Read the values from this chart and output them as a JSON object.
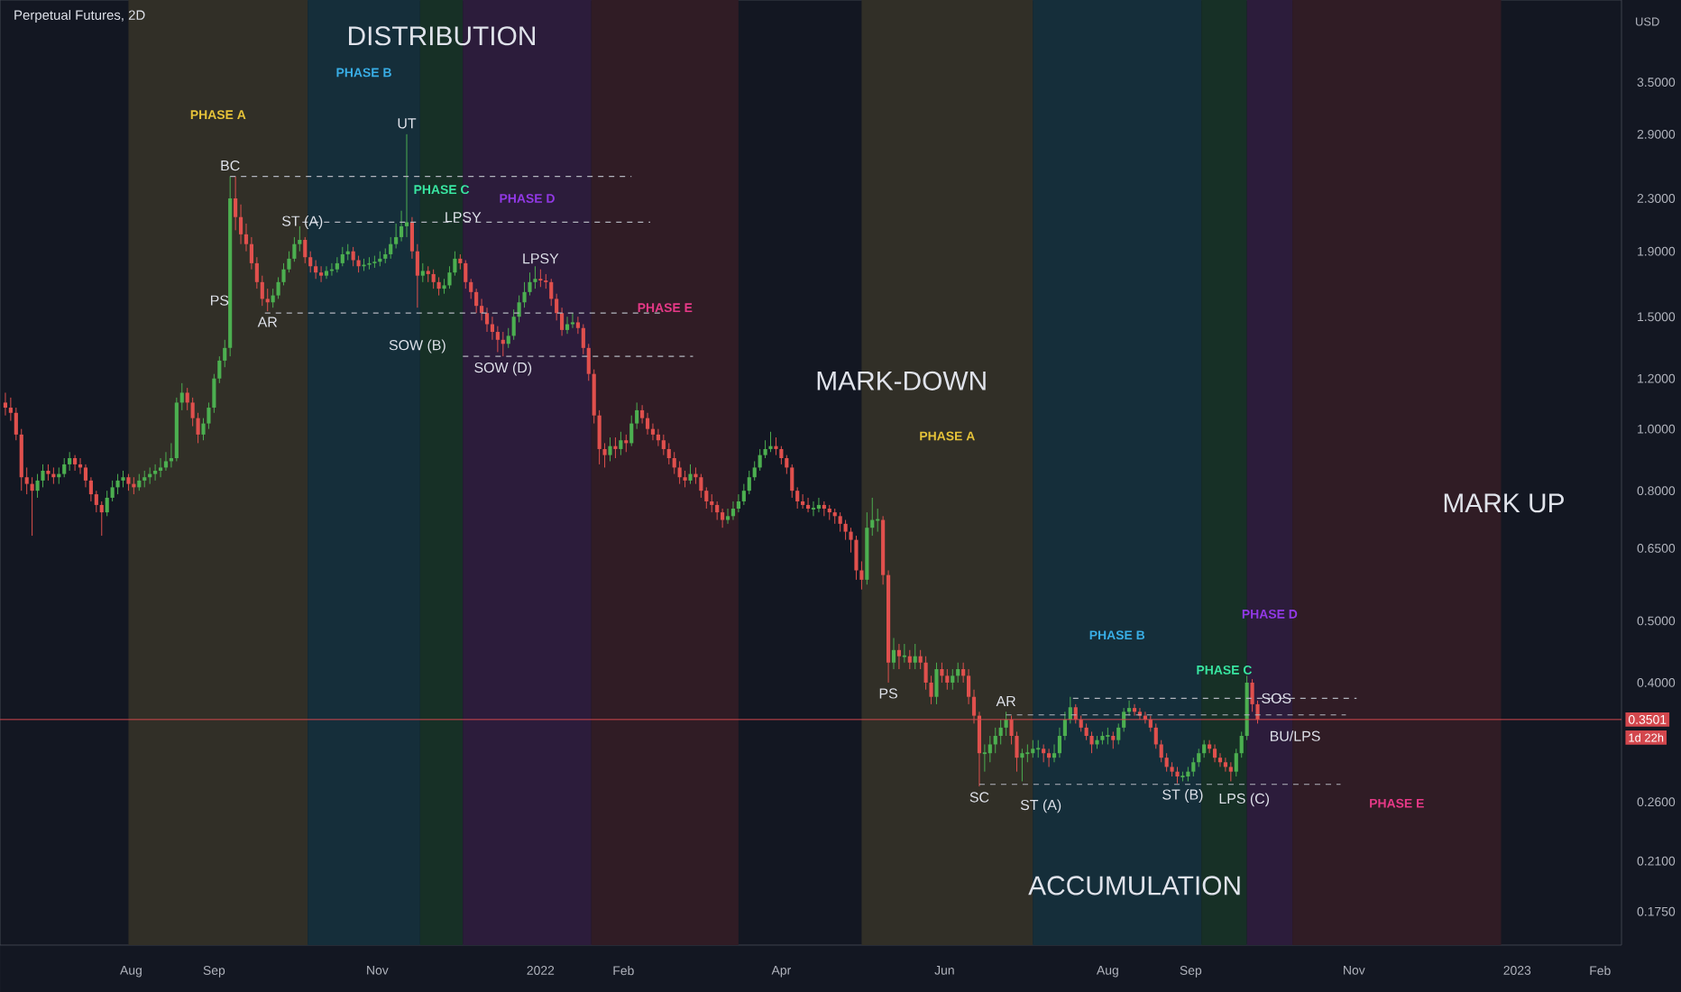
{
  "chart_data": {
    "type": "candlestick",
    "title": "Perpetual Futures, 2D",
    "x": [
      "2021-06-15",
      "2021-06-17",
      "2021-06-19",
      "2021-06-21",
      "2021-06-23",
      "2021-06-25",
      "2021-06-27",
      "2021-06-29",
      "2021-07-01",
      "2021-07-03",
      "2021-07-05",
      "2021-07-07",
      "2021-07-09",
      "2021-07-11",
      "2021-07-13",
      "2021-07-15",
      "2021-07-17",
      "2021-07-19",
      "2021-07-21",
      "2021-07-23",
      "2021-07-25",
      "2021-07-27",
      "2021-07-29",
      "2021-07-31",
      "2021-08-02",
      "2021-08-04",
      "2021-08-06",
      "2021-08-08",
      "2021-08-10",
      "2021-08-12",
      "2021-08-14",
      "2021-08-16",
      "2021-08-18",
      "2021-08-20",
      "2021-08-22",
      "2021-08-24",
      "2021-08-26",
      "2021-08-28",
      "2021-08-30",
      "2021-09-01",
      "2021-09-03",
      "2021-09-05",
      "2021-09-07",
      "2021-09-09",
      "2021-09-11",
      "2021-09-13",
      "2021-09-15",
      "2021-09-17",
      "2021-09-19",
      "2021-09-21",
      "2021-09-23",
      "2021-09-25",
      "2021-09-27",
      "2021-09-29",
      "2021-10-01",
      "2021-10-03",
      "2021-10-05",
      "2021-10-07",
      "2021-10-09",
      "2021-10-11",
      "2021-10-13",
      "2021-10-15",
      "2021-10-17",
      "2021-10-19",
      "2021-10-21",
      "2021-10-23",
      "2021-10-25",
      "2021-10-27",
      "2021-10-29",
      "2021-10-31",
      "2021-11-02",
      "2021-11-04",
      "2021-11-06",
      "2021-11-08",
      "2021-11-10",
      "2021-11-12",
      "2021-11-14",
      "2021-11-16",
      "2021-11-18",
      "2021-11-20",
      "2021-11-22",
      "2021-11-24",
      "2021-11-26",
      "2021-11-28",
      "2021-11-30",
      "2021-12-02",
      "2021-12-04",
      "2021-12-06",
      "2021-12-08",
      "2021-12-10",
      "2021-12-12",
      "2021-12-14",
      "2021-12-16",
      "2021-12-18",
      "2021-12-20",
      "2021-12-22",
      "2021-12-24",
      "2021-12-26",
      "2021-12-28",
      "2021-12-30",
      "2022-01-01",
      "2022-01-03",
      "2022-01-05",
      "2022-01-07",
      "2022-01-09",
      "2022-01-11",
      "2022-01-13",
      "2022-01-15",
      "2022-01-17",
      "2022-01-19",
      "2022-01-21",
      "2022-01-23",
      "2022-01-25",
      "2022-01-27",
      "2022-01-29",
      "2022-01-31",
      "2022-02-02",
      "2022-02-04",
      "2022-02-06",
      "2022-02-08",
      "2022-02-10",
      "2022-02-12",
      "2022-02-14",
      "2022-02-16",
      "2022-02-18",
      "2022-02-20",
      "2022-02-22",
      "2022-02-24",
      "2022-02-26",
      "2022-02-28",
      "2022-03-02",
      "2022-03-04",
      "2022-03-06",
      "2022-03-08",
      "2022-03-10",
      "2022-03-12",
      "2022-03-14",
      "2022-03-16",
      "2022-03-18",
      "2022-03-20",
      "2022-03-22",
      "2022-03-24",
      "2022-03-26",
      "2022-03-28",
      "2022-03-30",
      "2022-04-01",
      "2022-04-03",
      "2022-04-05",
      "2022-04-07",
      "2022-04-09",
      "2022-04-11",
      "2022-04-13",
      "2022-04-15",
      "2022-04-17",
      "2022-04-19",
      "2022-04-21",
      "2022-04-23",
      "2022-04-25",
      "2022-04-27",
      "2022-04-29",
      "2022-05-01",
      "2022-05-03",
      "2022-05-05",
      "2022-05-07",
      "2022-05-09",
      "2022-05-11",
      "2022-05-13",
      "2022-05-15",
      "2022-05-17",
      "2022-05-19",
      "2022-05-21",
      "2022-05-23",
      "2022-05-25",
      "2022-05-27",
      "2022-05-29",
      "2022-05-31",
      "2022-06-02",
      "2022-06-04",
      "2022-06-06",
      "2022-06-08",
      "2022-06-10",
      "2022-06-12",
      "2022-06-14",
      "2022-06-16",
      "2022-06-18",
      "2022-06-20",
      "2022-06-22",
      "2022-06-24",
      "2022-06-26",
      "2022-06-28",
      "2022-06-30",
      "2022-07-02",
      "2022-07-04",
      "2022-07-06",
      "2022-07-08",
      "2022-07-10",
      "2022-07-12",
      "2022-07-14",
      "2022-07-16",
      "2022-07-18",
      "2022-07-20",
      "2022-07-22",
      "2022-07-24",
      "2022-07-26",
      "2022-07-28",
      "2022-07-30",
      "2022-08-01",
      "2022-08-03",
      "2022-08-05",
      "2022-08-07",
      "2022-08-09",
      "2022-08-11",
      "2022-08-13",
      "2022-08-15",
      "2022-08-17",
      "2022-08-19",
      "2022-08-21",
      "2022-08-23",
      "2022-08-25",
      "2022-08-27",
      "2022-08-29",
      "2022-08-31",
      "2022-09-02",
      "2022-09-04",
      "2022-09-06",
      "2022-09-08",
      "2022-09-10",
      "2022-09-12",
      "2022-09-14",
      "2022-09-16",
      "2022-09-18",
      "2022-09-20",
      "2022-09-22",
      "2022-09-24",
      "2022-09-26"
    ],
    "ohlc": [
      [
        1.1,
        1.14,
        1.05,
        1.08
      ],
      [
        1.08,
        1.12,
        1.03,
        1.06
      ],
      [
        1.06,
        1.08,
        0.96,
        0.98
      ],
      [
        0.98,
        1.0,
        0.8,
        0.84
      ],
      [
        0.84,
        0.87,
        0.79,
        0.82
      ],
      [
        0.82,
        0.84,
        0.68,
        0.8
      ],
      [
        0.8,
        0.85,
        0.78,
        0.83
      ],
      [
        0.83,
        0.88,
        0.81,
        0.86
      ],
      [
        0.86,
        0.88,
        0.83,
        0.85
      ],
      [
        0.85,
        0.87,
        0.82,
        0.84
      ],
      [
        0.84,
        0.87,
        0.82,
        0.85
      ],
      [
        0.85,
        0.9,
        0.84,
        0.88
      ],
      [
        0.88,
        0.92,
        0.86,
        0.9
      ],
      [
        0.9,
        0.91,
        0.86,
        0.88
      ],
      [
        0.88,
        0.9,
        0.85,
        0.87
      ],
      [
        0.87,
        0.88,
        0.81,
        0.83
      ],
      [
        0.83,
        0.84,
        0.77,
        0.79
      ],
      [
        0.79,
        0.8,
        0.74,
        0.76
      ],
      [
        0.76,
        0.77,
        0.68,
        0.74
      ],
      [
        0.74,
        0.8,
        0.73,
        0.78
      ],
      [
        0.78,
        0.83,
        0.77,
        0.81
      ],
      [
        0.81,
        0.85,
        0.79,
        0.83
      ],
      [
        0.83,
        0.86,
        0.81,
        0.84
      ],
      [
        0.84,
        0.85,
        0.8,
        0.82
      ],
      [
        0.82,
        0.84,
        0.79,
        0.81
      ],
      [
        0.81,
        0.85,
        0.8,
        0.83
      ],
      [
        0.83,
        0.86,
        0.81,
        0.84
      ],
      [
        0.84,
        0.87,
        0.82,
        0.85
      ],
      [
        0.85,
        0.88,
        0.83,
        0.86
      ],
      [
        0.86,
        0.9,
        0.84,
        0.87
      ],
      [
        0.87,
        0.92,
        0.86,
        0.89
      ],
      [
        0.89,
        0.95,
        0.87,
        0.9
      ],
      [
        0.9,
        1.12,
        0.89,
        1.1
      ],
      [
        1.1,
        1.18,
        1.07,
        1.14
      ],
      [
        1.14,
        1.16,
        1.07,
        1.1
      ],
      [
        1.1,
        1.12,
        1.01,
        1.04
      ],
      [
        1.04,
        1.06,
        0.95,
        0.98
      ],
      [
        0.98,
        1.04,
        0.96,
        1.02
      ],
      [
        1.02,
        1.1,
        1.0,
        1.08
      ],
      [
        1.08,
        1.22,
        1.06,
        1.2
      ],
      [
        1.2,
        1.3,
        1.18,
        1.28
      ],
      [
        1.28,
        1.38,
        1.25,
        1.34
      ],
      [
        1.34,
        2.49,
        1.3,
        2.3
      ],
      [
        2.3,
        2.49,
        2.05,
        2.15
      ],
      [
        2.15,
        2.25,
        1.95,
        2.02
      ],
      [
        2.02,
        2.1,
        1.9,
        1.95
      ],
      [
        1.95,
        2.0,
        1.78,
        1.82
      ],
      [
        1.82,
        1.86,
        1.66,
        1.7
      ],
      [
        1.7,
        1.74,
        1.56,
        1.6
      ],
      [
        1.6,
        1.66,
        1.53,
        1.58
      ],
      [
        1.58,
        1.66,
        1.55,
        1.62
      ],
      [
        1.62,
        1.73,
        1.6,
        1.7
      ],
      [
        1.7,
        1.82,
        1.68,
        1.78
      ],
      [
        1.78,
        1.9,
        1.76,
        1.85
      ],
      [
        1.85,
        2.0,
        1.83,
        1.95
      ],
      [
        1.95,
        2.08,
        1.9,
        1.98
      ],
      [
        1.98,
        2.0,
        1.82,
        1.86
      ],
      [
        1.86,
        1.9,
        1.76,
        1.8
      ],
      [
        1.8,
        1.84,
        1.72,
        1.76
      ],
      [
        1.76,
        1.8,
        1.7,
        1.74
      ],
      [
        1.74,
        1.8,
        1.72,
        1.77
      ],
      [
        1.77,
        1.82,
        1.74,
        1.78
      ],
      [
        1.78,
        1.86,
        1.76,
        1.82
      ],
      [
        1.82,
        1.93,
        1.8,
        1.88
      ],
      [
        1.88,
        1.95,
        1.84,
        1.9
      ],
      [
        1.9,
        1.93,
        1.8,
        1.84
      ],
      [
        1.84,
        1.87,
        1.76,
        1.8
      ],
      [
        1.8,
        1.85,
        1.77,
        1.81
      ],
      [
        1.81,
        1.86,
        1.78,
        1.82
      ],
      [
        1.82,
        1.87,
        1.79,
        1.83
      ],
      [
        1.83,
        1.9,
        1.8,
        1.85
      ],
      [
        1.85,
        1.92,
        1.82,
        1.88
      ],
      [
        1.88,
        2.0,
        1.85,
        1.95
      ],
      [
        1.95,
        2.1,
        1.92,
        2.0
      ],
      [
        2.0,
        2.2,
        1.97,
        2.08
      ],
      [
        2.08,
        2.9,
        2.0,
        2.11
      ],
      [
        2.11,
        2.15,
        1.85,
        1.9
      ],
      [
        1.9,
        1.95,
        1.55,
        1.74
      ],
      [
        1.74,
        1.82,
        1.7,
        1.77
      ],
      [
        1.77,
        1.8,
        1.7,
        1.75
      ],
      [
        1.75,
        1.78,
        1.66,
        1.7
      ],
      [
        1.7,
        1.73,
        1.62,
        1.66
      ],
      [
        1.66,
        1.72,
        1.63,
        1.68
      ],
      [
        1.68,
        1.8,
        1.66,
        1.76
      ],
      [
        1.76,
        1.9,
        1.74,
        1.85
      ],
      [
        1.85,
        1.88,
        1.78,
        1.82
      ],
      [
        1.82,
        1.84,
        1.66,
        1.7
      ],
      [
        1.7,
        1.72,
        1.6,
        1.64
      ],
      [
        1.64,
        1.66,
        1.52,
        1.56
      ],
      [
        1.56,
        1.6,
        1.48,
        1.52
      ],
      [
        1.52,
        1.55,
        1.42,
        1.46
      ],
      [
        1.46,
        1.5,
        1.38,
        1.42
      ],
      [
        1.42,
        1.45,
        1.32,
        1.38
      ],
      [
        1.38,
        1.42,
        1.3,
        1.36
      ],
      [
        1.36,
        1.44,
        1.34,
        1.4
      ],
      [
        1.4,
        1.54,
        1.38,
        1.5
      ],
      [
        1.5,
        1.62,
        1.47,
        1.58
      ],
      [
        1.58,
        1.7,
        1.55,
        1.64
      ],
      [
        1.64,
        1.76,
        1.62,
        1.7
      ],
      [
        1.7,
        1.8,
        1.66,
        1.72
      ],
      [
        1.72,
        1.78,
        1.67,
        1.71
      ],
      [
        1.71,
        1.75,
        1.66,
        1.7
      ],
      [
        1.7,
        1.72,
        1.56,
        1.6
      ],
      [
        1.6,
        1.63,
        1.48,
        1.52
      ],
      [
        1.52,
        1.55,
        1.4,
        1.43
      ],
      [
        1.43,
        1.5,
        1.41,
        1.46
      ],
      [
        1.46,
        1.52,
        1.44,
        1.47
      ],
      [
        1.47,
        1.5,
        1.41,
        1.44
      ],
      [
        1.44,
        1.46,
        1.31,
        1.34
      ],
      [
        1.34,
        1.36,
        1.19,
        1.22
      ],
      [
        1.22,
        1.24,
        1.02,
        1.05
      ],
      [
        1.05,
        1.07,
        0.88,
        0.93
      ],
      [
        0.93,
        0.95,
        0.87,
        0.91
      ],
      [
        0.91,
        0.97,
        0.89,
        0.94
      ],
      [
        0.94,
        0.97,
        0.9,
        0.93
      ],
      [
        0.93,
        0.99,
        0.91,
        0.96
      ],
      [
        0.96,
        0.98,
        0.92,
        0.95
      ],
      [
        0.95,
        1.05,
        0.94,
        1.02
      ],
      [
        1.02,
        1.1,
        1.0,
        1.07
      ],
      [
        1.07,
        1.09,
        1.02,
        1.04
      ],
      [
        1.04,
        1.06,
        0.98,
        1.0
      ],
      [
        1.0,
        1.02,
        0.96,
        0.98
      ],
      [
        0.98,
        1.0,
        0.94,
        0.96
      ],
      [
        0.96,
        0.98,
        0.91,
        0.93
      ],
      [
        0.93,
        0.95,
        0.88,
        0.9
      ],
      [
        0.9,
        0.92,
        0.85,
        0.87
      ],
      [
        0.87,
        0.89,
        0.82,
        0.84
      ],
      [
        0.84,
        0.86,
        0.81,
        0.83
      ],
      [
        0.83,
        0.88,
        0.82,
        0.85
      ],
      [
        0.85,
        0.87,
        0.82,
        0.84
      ],
      [
        0.84,
        0.85,
        0.78,
        0.8
      ],
      [
        0.8,
        0.81,
        0.75,
        0.77
      ],
      [
        0.77,
        0.79,
        0.74,
        0.76
      ],
      [
        0.76,
        0.77,
        0.72,
        0.74
      ],
      [
        0.74,
        0.75,
        0.7,
        0.72
      ],
      [
        0.72,
        0.75,
        0.71,
        0.73
      ],
      [
        0.73,
        0.77,
        0.72,
        0.75
      ],
      [
        0.75,
        0.79,
        0.74,
        0.77
      ],
      [
        0.77,
        0.82,
        0.76,
        0.8
      ],
      [
        0.8,
        0.86,
        0.79,
        0.84
      ],
      [
        0.84,
        0.89,
        0.83,
        0.87
      ],
      [
        0.87,
        0.93,
        0.86,
        0.91
      ],
      [
        0.91,
        0.96,
        0.9,
        0.93
      ],
      [
        0.93,
        0.99,
        0.92,
        0.94
      ],
      [
        0.94,
        0.97,
        0.91,
        0.93
      ],
      [
        0.93,
        0.94,
        0.88,
        0.9
      ],
      [
        0.9,
        0.91,
        0.85,
        0.87
      ],
      [
        0.87,
        0.88,
        0.78,
        0.8
      ],
      [
        0.8,
        0.81,
        0.75,
        0.77
      ],
      [
        0.77,
        0.79,
        0.75,
        0.76
      ],
      [
        0.76,
        0.78,
        0.74,
        0.75
      ],
      [
        0.75,
        0.77,
        0.73,
        0.75
      ],
      [
        0.75,
        0.78,
        0.74,
        0.76
      ],
      [
        0.76,
        0.77,
        0.73,
        0.75
      ],
      [
        0.75,
        0.76,
        0.72,
        0.74
      ],
      [
        0.74,
        0.75,
        0.71,
        0.73
      ],
      [
        0.73,
        0.74,
        0.69,
        0.71
      ],
      [
        0.71,
        0.72,
        0.67,
        0.69
      ],
      [
        0.69,
        0.7,
        0.64,
        0.67
      ],
      [
        0.67,
        0.68,
        0.58,
        0.6
      ],
      [
        0.6,
        0.62,
        0.56,
        0.58
      ],
      [
        0.58,
        0.74,
        0.57,
        0.7
      ],
      [
        0.7,
        0.78,
        0.68,
        0.72
      ],
      [
        0.72,
        0.75,
        0.69,
        0.72
      ],
      [
        0.72,
        0.73,
        0.57,
        0.59
      ],
      [
        0.59,
        0.6,
        0.4,
        0.43
      ],
      [
        0.43,
        0.47,
        0.42,
        0.45
      ],
      [
        0.45,
        0.46,
        0.42,
        0.44
      ],
      [
        0.44,
        0.46,
        0.43,
        0.44
      ],
      [
        0.44,
        0.45,
        0.42,
        0.43
      ],
      [
        0.43,
        0.46,
        0.42,
        0.44
      ],
      [
        0.44,
        0.45,
        0.42,
        0.43
      ],
      [
        0.43,
        0.44,
        0.39,
        0.4
      ],
      [
        0.4,
        0.41,
        0.37,
        0.38
      ],
      [
        0.38,
        0.43,
        0.37,
        0.42
      ],
      [
        0.42,
        0.43,
        0.4,
        0.41
      ],
      [
        0.41,
        0.42,
        0.39,
        0.4
      ],
      [
        0.4,
        0.42,
        0.39,
        0.41
      ],
      [
        0.41,
        0.43,
        0.4,
        0.42
      ],
      [
        0.42,
        0.43,
        0.4,
        0.41
      ],
      [
        0.41,
        0.42,
        0.37,
        0.38
      ],
      [
        0.38,
        0.39,
        0.345,
        0.355
      ],
      [
        0.355,
        0.36,
        0.275,
        0.31
      ],
      [
        0.31,
        0.32,
        0.29,
        0.31
      ],
      [
        0.31,
        0.33,
        0.3,
        0.32
      ],
      [
        0.32,
        0.34,
        0.31,
        0.33
      ],
      [
        0.33,
        0.35,
        0.32,
        0.34
      ],
      [
        0.34,
        0.36,
        0.33,
        0.35
      ],
      [
        0.35,
        0.355,
        0.32,
        0.33
      ],
      [
        0.33,
        0.335,
        0.29,
        0.305
      ],
      [
        0.305,
        0.315,
        0.28,
        0.31
      ],
      [
        0.31,
        0.32,
        0.3,
        0.31
      ],
      [
        0.31,
        0.325,
        0.305,
        0.315
      ],
      [
        0.315,
        0.325,
        0.305,
        0.315
      ],
      [
        0.315,
        0.32,
        0.3,
        0.31
      ],
      [
        0.31,
        0.315,
        0.295,
        0.305
      ],
      [
        0.305,
        0.32,
        0.3,
        0.31
      ],
      [
        0.31,
        0.34,
        0.305,
        0.33
      ],
      [
        0.33,
        0.36,
        0.325,
        0.35
      ],
      [
        0.35,
        0.38,
        0.345,
        0.366
      ],
      [
        0.366,
        0.37,
        0.345,
        0.35
      ],
      [
        0.35,
        0.355,
        0.335,
        0.34
      ],
      [
        0.34,
        0.345,
        0.325,
        0.33
      ],
      [
        0.33,
        0.335,
        0.31,
        0.32
      ],
      [
        0.32,
        0.33,
        0.315,
        0.325
      ],
      [
        0.325,
        0.335,
        0.32,
        0.33
      ],
      [
        0.33,
        0.34,
        0.32,
        0.33
      ],
      [
        0.33,
        0.335,
        0.315,
        0.325
      ],
      [
        0.325,
        0.345,
        0.32,
        0.34
      ],
      [
        0.34,
        0.365,
        0.335,
        0.36
      ],
      [
        0.36,
        0.375,
        0.355,
        0.365
      ],
      [
        0.365,
        0.37,
        0.355,
        0.36
      ],
      [
        0.36,
        0.365,
        0.35,
        0.355
      ],
      [
        0.355,
        0.36,
        0.345,
        0.35
      ],
      [
        0.35,
        0.355,
        0.335,
        0.34
      ],
      [
        0.34,
        0.345,
        0.315,
        0.32
      ],
      [
        0.32,
        0.325,
        0.3,
        0.305
      ],
      [
        0.305,
        0.31,
        0.29,
        0.295
      ],
      [
        0.295,
        0.3,
        0.285,
        0.29
      ],
      [
        0.29,
        0.295,
        0.278,
        0.285
      ],
      [
        0.285,
        0.29,
        0.28,
        0.285
      ],
      [
        0.285,
        0.295,
        0.28,
        0.29
      ],
      [
        0.29,
        0.305,
        0.285,
        0.3
      ],
      [
        0.3,
        0.315,
        0.295,
        0.31
      ],
      [
        0.31,
        0.325,
        0.305,
        0.32
      ],
      [
        0.32,
        0.325,
        0.31,
        0.315
      ],
      [
        0.315,
        0.32,
        0.3,
        0.305
      ],
      [
        0.305,
        0.31,
        0.295,
        0.3
      ],
      [
        0.3,
        0.305,
        0.29,
        0.295
      ],
      [
        0.295,
        0.3,
        0.28,
        0.29
      ],
      [
        0.29,
        0.315,
        0.285,
        0.31
      ],
      [
        0.31,
        0.335,
        0.305,
        0.33
      ],
      [
        0.33,
        0.41,
        0.325,
        0.4
      ],
      [
        0.4,
        0.405,
        0.36,
        0.37
      ],
      [
        0.37,
        0.375,
        0.345,
        0.3501
      ]
    ],
    "series": [
      {
        "type": "line",
        "color": "#b2b5be",
        "line_style": "dashed",
        "x": [
          "2021-09-07",
          "2022-02-04"
        ],
        "values": [
          2.49,
          2.49
        ]
      },
      {
        "type": "line",
        "color": "#b2b5be",
        "line_style": "dashed",
        "x": [
          "2021-10-04",
          "2022-02-11"
        ],
        "values": [
          2.11,
          2.11
        ]
      },
      {
        "type": "line",
        "color": "#b2b5be",
        "line_style": "dashed",
        "x": [
          "2021-09-20",
          "2022-02-15"
        ],
        "values": [
          1.52,
          1.52
        ]
      },
      {
        "type": "line",
        "color": "#b2b5be",
        "line_style": "dashed",
        "x": [
          "2021-12-03",
          "2022-02-27"
        ],
        "values": [
          1.3,
          1.3
        ]
      },
      {
        "type": "line",
        "color": "#b2b5be",
        "line_style": "dashed",
        "x": [
          "2022-07-19",
          "2022-11-02"
        ],
        "values": [
          0.378,
          0.378
        ]
      },
      {
        "type": "line",
        "color": "#b2b5be",
        "line_style": "dashed",
        "x": [
          "2022-06-24",
          "2022-10-29"
        ],
        "values": [
          0.356,
          0.356
        ]
      },
      {
        "type": "line",
        "color": "#b2b5be",
        "line_style": "dashed",
        "x": [
          "2022-06-14",
          "2022-10-27"
        ],
        "values": [
          0.277,
          0.277
        ]
      }
    ],
    "bands": [
      {
        "axis": "x",
        "from": "2021-07-31",
        "to": "2021-10-06",
        "label": "PHASE A",
        "color": "#312f27"
      },
      {
        "axis": "x",
        "from": "2021-10-06",
        "to": "2021-11-17",
        "label": "PHASE B",
        "color": "#152e3a"
      },
      {
        "axis": "x",
        "from": "2021-11-17",
        "to": "2021-12-03",
        "label": "PHASE C",
        "color": "#173026"
      },
      {
        "axis": "x",
        "from": "2021-12-03",
        "to": "2022-01-20",
        "label": "PHASE D",
        "color": "#2c1c3b"
      },
      {
        "axis": "x",
        "from": "2022-01-20",
        "to": "2022-03-16",
        "label": "PHASE E",
        "color": "#301c25"
      },
      {
        "axis": "x",
        "from": "2022-05-01",
        "to": "2022-07-04",
        "label": "PHASE A",
        "color": "#312f27"
      },
      {
        "axis": "x",
        "from": "2022-07-04",
        "to": "2022-09-05",
        "label": "PHASE B",
        "color": "#152e3a"
      },
      {
        "axis": "x",
        "from": "2022-09-05",
        "to": "2022-09-22",
        "label": "PHASE C",
        "color": "#173026"
      },
      {
        "axis": "x",
        "from": "2022-09-22",
        "to": "2022-10-09",
        "label": "PHASE D",
        "color": "#2c1c3b"
      },
      {
        "axis": "x",
        "from": "2022-10-09",
        "to": "2022-12-26",
        "label": "PHASE E",
        "color": "#301c25"
      }
    ],
    "ref_lines": [
      {
        "axis": "y",
        "value": 0.3501,
        "label": "0.3501",
        "color": "#d3474d"
      }
    ],
    "annotations": [
      "DISTRIBUTION",
      "MARK-DOWN",
      "ACCUMULATION",
      {
        "text": "MARK UP",
        "x": "2022-12-27",
        "y": 0.765
      },
      {
        "text": "PS",
        "x": "2021-09-03",
        "y": 1.53
      },
      {
        "text": "BC",
        "x": "2021-09-07",
        "y": 2.49
      },
      {
        "text": "AR",
        "x": "2021-09-21",
        "y": 1.53
      },
      {
        "text": "ST (A)",
        "x": "2021-10-04",
        "y": 2.11
      },
      {
        "text": "UT",
        "x": "2021-11-12",
        "y": 2.9
      },
      {
        "text": "SOW (B)",
        "x": "2021-11-16",
        "y": 1.41
      },
      {
        "text": "LPSY",
        "x": "2021-12-03",
        "y": 2.15
      },
      {
        "text": "LPSY",
        "x": "2022-01-01",
        "y": 1.78
      },
      {
        "text": "SOW (D)",
        "x": "2021-12-18",
        "y": 1.3
      },
      {
        "text": "PS",
        "x": "2022-05-11",
        "y": 0.4
      },
      {
        "text": "SC",
        "x": "2022-06-14",
        "y": 0.275
      },
      {
        "text": "ST (A)",
        "x": "2022-07-07",
        "y": 0.256
      },
      {
        "text": "AR",
        "x": "2022-06-24",
        "y": 0.36
      },
      {
        "text": "ST (B)",
        "x": "2022-08-29",
        "y": 0.278
      },
      {
        "text": "LPS (C)",
        "x": "2022-09-21",
        "y": 0.262
      },
      {
        "text": "SOS",
        "x": "2022-10-03",
        "y": 0.378
      },
      {
        "text": "BU/LPS",
        "x": "2022-10-10",
        "y": 0.33
      },
      "USD",
      "1d 22h"
    ],
    "log": true,
    "xlim": [
      "2021-06-13",
      "2023-02-09"
    ],
    "xticks": [
      {
        "value": "2021-08-01",
        "label": "Aug"
      },
      {
        "value": "2021-09-01",
        "label": "Sep"
      },
      {
        "value": "2021-11-01",
        "label": "Nov"
      },
      {
        "value": "2022-01-01",
        "label": "2022"
      },
      {
        "value": "2022-02-01",
        "label": "Feb"
      },
      {
        "value": "2022-04-01",
        "label": "Apr"
      },
      {
        "value": "2022-06-01",
        "label": "Jun"
      },
      {
        "value": "2022-08-01",
        "label": "Aug"
      },
      {
        "value": "2022-09-01",
        "label": "Sep"
      },
      {
        "value": "2022-11-01",
        "label": "Nov"
      },
      {
        "value": "2023-01-01",
        "label": "2023"
      },
      {
        "value": "2023-02-01",
        "label": "Feb"
      }
    ],
    "ylim": [
      0.155,
      4.71
    ],
    "yticks": [
      {
        "value": 3.5,
        "label": "3.5000"
      },
      {
        "value": 2.9,
        "label": "2.9000"
      },
      {
        "value": 2.3,
        "label": "2.3000"
      },
      {
        "value": 1.9,
        "label": "1.9000"
      },
      {
        "value": 1.5,
        "label": "1.5000"
      },
      {
        "value": 1.2,
        "label": "1.2000"
      },
      {
        "value": 1.0,
        "label": "1.0000"
      },
      {
        "value": 0.8,
        "label": "0.8000"
      },
      {
        "value": 0.65,
        "label": "0.6500"
      },
      {
        "value": 0.5,
        "label": "0.5000"
      },
      {
        "value": 0.4,
        "label": "0.4000"
      },
      {
        "value": 0.26,
        "label": "0.2600"
      },
      {
        "value": 0.21,
        "label": "0.2100"
      },
      {
        "value": 0.175,
        "label": "0.1750"
      }
    ]
  }
}
